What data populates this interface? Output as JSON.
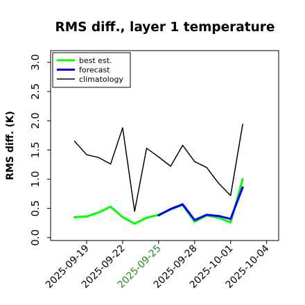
{
  "chart_data": {
    "type": "line",
    "title": "RMS diff., layer 1 temperature",
    "ylabel": "RMS diff. (K)",
    "xlabel": "",
    "ylim": [
      -0.05,
      3.2
    ],
    "xlim": [
      "2025-09-16",
      "2025-10-05"
    ],
    "yticks": [
      0.0,
      0.5,
      1.0,
      1.5,
      2.0,
      2.5,
      3.0
    ],
    "ytick_labels": [
      "0.0",
      "0.5",
      "1.0",
      "1.5",
      "2.0",
      "2.5",
      "3.0"
    ],
    "xticks": [
      "2025-09-19",
      "2025-09-22",
      "2025-09-25",
      "2025-09-28",
      "2025-10-01",
      "2025-10-04"
    ],
    "xtick_colors": [
      "#000000",
      "#000000",
      "#228b22",
      "#000000",
      "#000000",
      "#000000"
    ],
    "grid": false,
    "legend_position": "top-left",
    "x": [
      "2025-09-18",
      "2025-09-19",
      "2025-09-20",
      "2025-09-21",
      "2025-09-22",
      "2025-09-23",
      "2025-09-24",
      "2025-09-25",
      "2025-09-26",
      "2025-09-27",
      "2025-09-28",
      "2025-09-29",
      "2025-09-30",
      "2025-10-01",
      "2025-10-02"
    ],
    "series": [
      {
        "name": "best est.",
        "color": "#00ff00",
        "width": 3,
        "values": [
          0.35,
          0.36,
          0.43,
          0.53,
          0.35,
          0.24,
          0.34,
          0.39,
          0.48,
          0.56,
          0.27,
          0.38,
          0.34,
          0.26,
          1.0
        ]
      },
      {
        "name": "forecast",
        "color": "#0000ff",
        "width": 3,
        "values": [
          null,
          null,
          null,
          null,
          null,
          null,
          null,
          0.38,
          0.49,
          0.57,
          0.3,
          0.39,
          0.37,
          0.32,
          0.86
        ]
      },
      {
        "name": "climatology",
        "color": "#000000",
        "width": 1.5,
        "values": [
          1.65,
          1.42,
          1.37,
          1.26,
          1.88,
          0.45,
          1.53,
          1.38,
          1.22,
          1.58,
          1.3,
          1.2,
          0.93,
          0.72,
          1.94
        ]
      }
    ]
  }
}
